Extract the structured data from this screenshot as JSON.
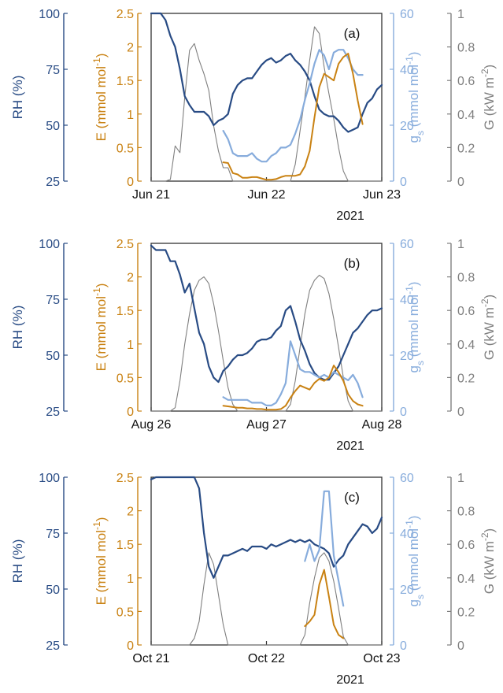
{
  "colors": {
    "rh": "#284b84",
    "e": "#c98213",
    "gs": "#87acdc",
    "g": "#7f7f7f",
    "frame": "#333333"
  },
  "axis_labels": {
    "rh": "RH (%)",
    "e_main": "E (mmol mol",
    "e_sup": "-1",
    "e_close": ")",
    "gs_main": "g",
    "gs_sub": "s",
    "gs_rest": " (mmol mol",
    "gs_sup": "-1",
    "gs_close": ")",
    "g_main": "G (kW m",
    "g_sup": "-2",
    "g_close": ")"
  },
  "chart_data": [
    {
      "type": "line",
      "panel_label": "(a)",
      "year_label": "2021",
      "x_ticks": [
        "Jun 21",
        "Jun 22",
        "Jun 23"
      ],
      "x_range_hours": [
        0,
        48
      ],
      "axes": {
        "rh": {
          "ylim": [
            25,
            100
          ],
          "ticks": [
            "25",
            "50",
            "75",
            "100"
          ]
        },
        "e": {
          "ylim": [
            0,
            2.5
          ],
          "ticks": [
            "0",
            "0.5",
            "1",
            "1.5",
            "2",
            "2.5"
          ]
        },
        "gs": {
          "ylim": [
            0,
            60
          ],
          "ticks": [
            "0",
            "20",
            "40",
            "60"
          ]
        },
        "g": {
          "ylim": [
            0,
            1
          ],
          "ticks": [
            "0",
            "0.2",
            "0.4",
            "0.6",
            "0.8",
            "1"
          ]
        }
      },
      "series": [
        {
          "key": "g",
          "axis": "g",
          "x": [
            0,
            1,
            2,
            3,
            4,
            5,
            6,
            7,
            8,
            9,
            10,
            11,
            12,
            13,
            14,
            15,
            16,
            17,
            18,
            19,
            20,
            21,
            22,
            23,
            24,
            25,
            26,
            27,
            28,
            29,
            30,
            31,
            32,
            33,
            34,
            35,
            36,
            37,
            38,
            39,
            40,
            41,
            42,
            43,
            44,
            45,
            46,
            47,
            48
          ],
          "y": [
            0,
            0,
            0,
            0,
            0.01,
            0.21,
            0.17,
            0.5,
            0.78,
            0.82,
            0.72,
            0.64,
            0.54,
            0.33,
            0.18,
            0.08,
            0.08,
            0,
            0,
            0,
            0,
            0,
            0,
            0,
            0,
            0,
            0,
            0,
            0,
            0,
            0.1,
            0.3,
            0.5,
            0.72,
            0.92,
            0.88,
            0.68,
            0.52,
            0.37,
            0.2,
            0.06,
            0,
            0,
            0,
            0,
            0,
            0,
            0,
            0
          ]
        },
        {
          "key": "rh",
          "axis": "rh",
          "x": [
            0,
            1,
            2,
            3,
            4,
            5,
            6,
            7,
            8,
            9,
            10,
            11,
            12,
            13,
            14,
            15,
            16,
            17,
            18,
            19,
            20,
            21,
            22,
            23,
            24,
            25,
            26,
            27,
            28,
            29,
            30,
            31,
            32,
            33,
            34,
            35,
            36,
            37,
            38,
            39,
            40,
            41,
            42,
            43,
            44,
            45,
            46,
            47,
            48
          ],
          "y": [
            100,
            100,
            100,
            97,
            90,
            85,
            75,
            63,
            59,
            56,
            56,
            56,
            54,
            50,
            52,
            53,
            55,
            64,
            68,
            70,
            71,
            71,
            74,
            77,
            79,
            80,
            78,
            79,
            81,
            82,
            79,
            77,
            74,
            70,
            63,
            57,
            55,
            54,
            54,
            52,
            49,
            47,
            48,
            49,
            55,
            60,
            62,
            66,
            68
          ]
        },
        {
          "key": "gs",
          "axis": "gs",
          "x": [
            15,
            16,
            17,
            18,
            19,
            20,
            21,
            22,
            23,
            24,
            25,
            26,
            27,
            28,
            29,
            30,
            31,
            32,
            33,
            34,
            35,
            36,
            37,
            38,
            39,
            40,
            41,
            42,
            43,
            44
          ],
          "y": [
            18,
            15,
            10,
            9,
            9,
            9,
            10,
            8,
            7,
            7,
            9,
            10,
            12,
            12,
            13,
            17,
            22,
            29,
            35,
            42,
            47,
            45,
            40,
            46,
            47,
            47,
            44,
            40,
            38,
            38
          ]
        },
        {
          "key": "e",
          "axis": "e",
          "x": [
            15,
            16,
            17,
            18,
            19,
            20,
            21,
            22,
            23,
            24,
            25,
            26,
            27,
            28,
            29,
            30,
            31,
            32,
            33,
            34,
            35,
            36,
            37,
            38,
            39,
            40,
            41,
            42,
            43,
            44
          ],
          "y": [
            0.28,
            0.27,
            0.12,
            0.1,
            0.05,
            0.05,
            0.06,
            0.06,
            0.04,
            0.02,
            0.02,
            0.03,
            0.06,
            0.08,
            0.08,
            0.08,
            0.1,
            0.22,
            0.45,
            0.95,
            1.4,
            1.6,
            1.55,
            1.5,
            1.75,
            1.85,
            1.9,
            1.6,
            1.2,
            0.85
          ]
        }
      ]
    },
    {
      "type": "line",
      "panel_label": "(b)",
      "year_label": "2021",
      "x_ticks": [
        "Aug 26",
        "Aug 27",
        "Aug 28"
      ],
      "x_range_hours": [
        0,
        48
      ],
      "axes": {
        "rh": {
          "ylim": [
            25,
            100
          ],
          "ticks": [
            "25",
            "50",
            "75",
            "100"
          ]
        },
        "e": {
          "ylim": [
            0,
            2.5
          ],
          "ticks": [
            "0",
            "0.5",
            "1",
            "1.5",
            "2",
            "2.5"
          ]
        },
        "gs": {
          "ylim": [
            0,
            60
          ],
          "ticks": [
            "0",
            "20",
            "40",
            "60"
          ]
        },
        "g": {
          "ylim": [
            0,
            1
          ],
          "ticks": [
            "0",
            "0.2",
            "0.4",
            "0.6",
            "0.8",
            "1"
          ]
        }
      },
      "series": [
        {
          "key": "g",
          "axis": "g",
          "x": [
            0,
            1,
            2,
            3,
            4,
            5,
            6,
            7,
            8,
            9,
            10,
            11,
            12,
            13,
            14,
            15,
            16,
            17,
            18,
            19,
            20,
            21,
            22,
            23,
            24,
            25,
            26,
            27,
            28,
            29,
            30,
            31,
            32,
            33,
            34,
            35,
            36,
            37,
            38,
            39,
            40,
            41,
            42,
            43,
            44,
            45,
            46,
            47,
            48
          ],
          "y": [
            0,
            0,
            0,
            0,
            0,
            0.02,
            0.18,
            0.4,
            0.58,
            0.72,
            0.78,
            0.8,
            0.76,
            0.64,
            0.48,
            0.3,
            0.14,
            0.04,
            0,
            0,
            0,
            0,
            0,
            0,
            0,
            0,
            0,
            0,
            0,
            0.04,
            0.18,
            0.38,
            0.58,
            0.72,
            0.78,
            0.81,
            0.79,
            0.7,
            0.55,
            0.38,
            0.2,
            0.06,
            0,
            0,
            0,
            0,
            0,
            0,
            0
          ]
        },
        {
          "key": "rh",
          "axis": "rh",
          "x": [
            0,
            1,
            2,
            3,
            4,
            5,
            6,
            7,
            8,
            9,
            10,
            11,
            12,
            13,
            14,
            15,
            16,
            17,
            18,
            19,
            20,
            21,
            22,
            23,
            24,
            25,
            26,
            27,
            28,
            29,
            30,
            31,
            32,
            33,
            34,
            35,
            36,
            37,
            38,
            39,
            40,
            41,
            42,
            43,
            44,
            45,
            46,
            47,
            48
          ],
          "y": [
            99,
            97,
            97,
            97,
            92,
            92,
            86,
            78,
            82,
            71,
            60,
            55,
            45,
            40,
            38,
            43,
            45,
            48,
            50,
            50,
            51,
            53,
            56,
            57,
            57,
            58,
            61,
            63,
            70,
            72,
            65,
            57,
            52,
            46,
            42,
            40,
            39,
            39,
            42,
            45,
            50,
            55,
            60,
            62,
            65,
            68,
            70,
            70,
            71
          ]
        },
        {
          "key": "gs",
          "axis": "gs",
          "x": [
            15,
            16,
            17,
            18,
            19,
            20,
            21,
            22,
            23,
            24,
            25,
            26,
            27,
            28,
            29,
            30,
            31,
            32,
            33,
            34,
            35,
            36,
            37,
            38,
            39,
            40,
            41,
            42,
            43,
            44
          ],
          "y": [
            5,
            4,
            4,
            4,
            4,
            4,
            3,
            3,
            3,
            2,
            2,
            3,
            6,
            10,
            25,
            20,
            15,
            14,
            14,
            13,
            12,
            13,
            12,
            14,
            13,
            12,
            11,
            13,
            10,
            5
          ]
        },
        {
          "key": "e",
          "axis": "e",
          "x": [
            15,
            16,
            17,
            18,
            19,
            20,
            21,
            22,
            23,
            24,
            25,
            26,
            27,
            28,
            29,
            30,
            31,
            32,
            33,
            34,
            35,
            36,
            37,
            38,
            39,
            40,
            41,
            42,
            43,
            44
          ],
          "y": [
            0.08,
            0.07,
            0.06,
            0.05,
            0.05,
            0.04,
            0.04,
            0.03,
            0.03,
            0.02,
            0.02,
            0.02,
            0.03,
            0.08,
            0.2,
            0.3,
            0.38,
            0.35,
            0.32,
            0.42,
            0.48,
            0.45,
            0.5,
            0.68,
            0.58,
            0.45,
            0.25,
            0.15,
            0.1,
            0.08
          ]
        }
      ]
    },
    {
      "type": "line",
      "panel_label": "(c)",
      "year_label": "2021",
      "x_ticks": [
        "Oct 21",
        "Oct 22",
        "Oct 23"
      ],
      "x_range_hours": [
        0,
        48
      ],
      "axes": {
        "rh": {
          "ylim": [
            25,
            100
          ],
          "ticks": [
            "25",
            "50",
            "75",
            "100"
          ]
        },
        "e": {
          "ylim": [
            0,
            2.5
          ],
          "ticks": [
            "0",
            "0.5",
            "1",
            "1.5",
            "2",
            "2.5"
          ]
        },
        "gs": {
          "ylim": [
            0,
            60
          ],
          "ticks": [
            "0",
            "20",
            "40",
            "60"
          ]
        },
        "g": {
          "ylim": [
            0,
            1
          ],
          "ticks": [
            "0",
            "0.2",
            "0.4",
            "0.6",
            "0.8",
            "1"
          ]
        }
      },
      "series": [
        {
          "key": "g",
          "axis": "g",
          "x": [
            0,
            1,
            2,
            3,
            4,
            5,
            6,
            7,
            8,
            9,
            10,
            11,
            12,
            13,
            14,
            15,
            16,
            17,
            18,
            19,
            20,
            21,
            22,
            23,
            24,
            25,
            26,
            27,
            28,
            29,
            30,
            31,
            32,
            33,
            34,
            35,
            36,
            37,
            38,
            39,
            40,
            41,
            42,
            43,
            44,
            45,
            46,
            47,
            48
          ],
          "y": [
            0,
            0,
            0,
            0,
            0,
            0,
            0,
            0,
            0,
            0.04,
            0.14,
            0.36,
            0.55,
            0.48,
            0.3,
            0.12,
            0,
            0,
            0,
            0,
            0,
            0,
            0,
            0,
            0,
            0,
            0,
            0,
            0,
            0,
            0,
            0,
            0.06,
            0.25,
            0.4,
            0.52,
            0.55,
            0.5,
            0.38,
            0.22,
            0.05,
            0,
            0,
            0,
            0,
            0,
            0,
            0,
            0
          ]
        },
        {
          "key": "rh",
          "axis": "rh",
          "x": [
            0,
            1,
            2,
            3,
            4,
            5,
            6,
            7,
            8,
            9,
            10,
            11,
            12,
            13,
            14,
            15,
            16,
            17,
            18,
            19,
            20,
            21,
            22,
            23,
            24,
            25,
            26,
            27,
            28,
            29,
            30,
            31,
            32,
            33,
            34,
            35,
            36,
            37,
            38,
            39,
            40,
            41,
            42,
            43,
            44,
            45,
            46,
            47,
            48
          ],
          "y": [
            99,
            100,
            100,
            100,
            100,
            100,
            100,
            100,
            100,
            100,
            95,
            75,
            60,
            55,
            60,
            65,
            65,
            66,
            67,
            68,
            67,
            69,
            69,
            69,
            68,
            70,
            69,
            70,
            71,
            72,
            71,
            72,
            71,
            72,
            70,
            69,
            68,
            66,
            60,
            63,
            65,
            70,
            73,
            76,
            79,
            78,
            75,
            77,
            82
          ]
        },
        {
          "key": "gs",
          "axis": "gs",
          "x": [
            32,
            33,
            34,
            35,
            36,
            37,
            38,
            39,
            40
          ],
          "y": [
            30,
            36,
            30,
            34,
            55,
            55,
            32,
            23,
            14
          ]
        },
        {
          "key": "e",
          "axis": "e",
          "x": [
            32,
            33,
            34,
            35,
            36,
            37,
            38,
            39,
            40
          ],
          "y": [
            0.28,
            0.35,
            0.45,
            0.9,
            1.12,
            0.72,
            0.3,
            0.15,
            0.1
          ]
        }
      ]
    }
  ]
}
